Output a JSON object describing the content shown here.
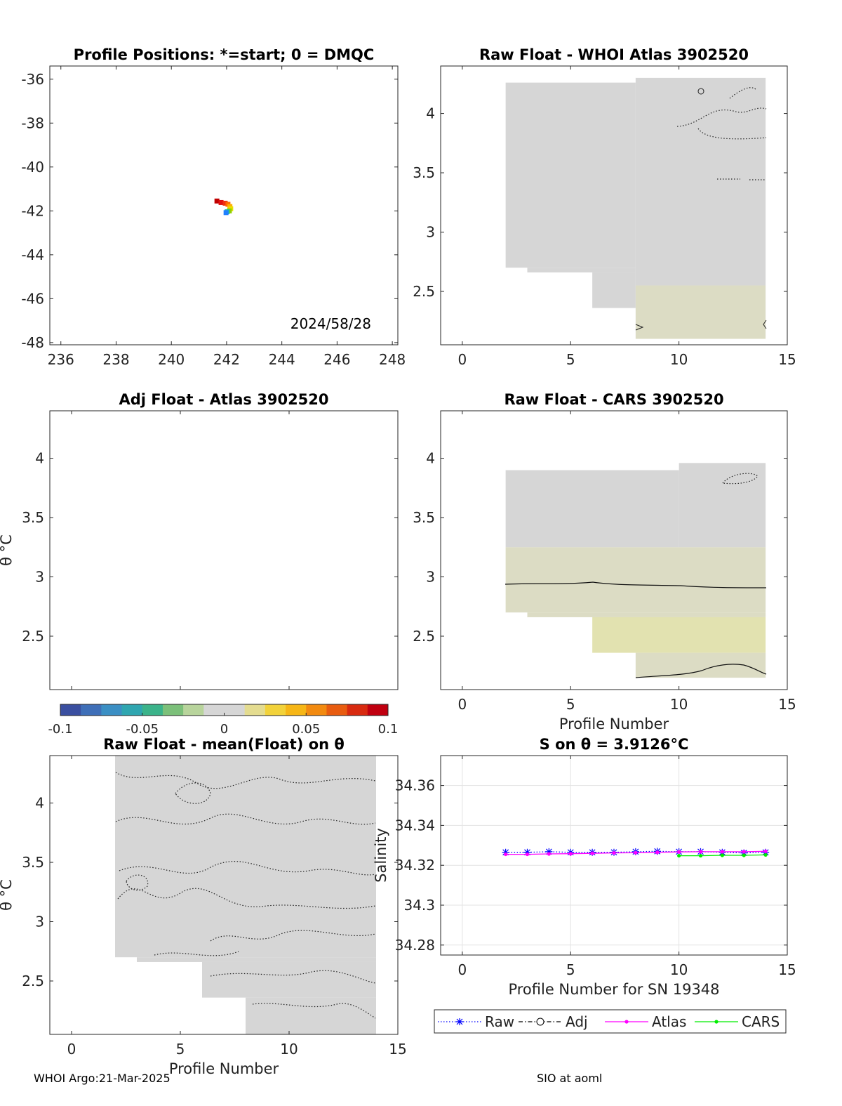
{
  "footer": {
    "left": "WHOI Argo:21-Mar-2025",
    "right": "SIO at aoml"
  },
  "colorbar": {
    "ticks": [
      -0.1,
      -0.05,
      0,
      0.05,
      0.1
    ],
    "tick_labels": [
      "-0.1",
      "-0.05",
      "0",
      "0.05",
      "0.1"
    ],
    "range": [
      -0.1,
      0.1
    ]
  },
  "chart_data": [
    {
      "id": "positions",
      "type": "scatter",
      "title": "Profile Positions: *=start; 0 = DMQC",
      "xlabel": "",
      "ylabel": "",
      "xlim": [
        235.6,
        248.2
      ],
      "ylim": [
        -48.1,
        -35.4
      ],
      "xticks": [
        236,
        238,
        240,
        242,
        244,
        246,
        248
      ],
      "xtick_labels": [
        "236",
        "238",
        "240",
        "242",
        "244",
        "246",
        "248"
      ],
      "yticks": [
        -36,
        -38,
        -40,
        -42,
        -44,
        -46,
        -48
      ],
      "ytick_labels": [
        "-36",
        "-38",
        "-40",
        "-42",
        "-44",
        "-46",
        "-48"
      ],
      "annotation": "2024/58/28",
      "points": [
        {
          "x": 241.65,
          "y": -41.55,
          "color": "#c00000"
        },
        {
          "x": 241.8,
          "y": -41.62,
          "color": "#e01010"
        },
        {
          "x": 241.95,
          "y": -41.65,
          "color": "#f03010"
        },
        {
          "x": 242.05,
          "y": -41.7,
          "color": "#ff6a00"
        },
        {
          "x": 242.12,
          "y": -41.8,
          "color": "#ffb000"
        },
        {
          "x": 242.15,
          "y": -41.9,
          "color": "#e8e000"
        },
        {
          "x": 242.1,
          "y": -42.0,
          "color": "#8fd000"
        },
        {
          "x": 242.02,
          "y": -42.04,
          "color": "#20c0a0"
        },
        {
          "x": 241.98,
          "y": -42.08,
          "color": "#2080ff"
        }
      ]
    },
    {
      "id": "raw-whoi",
      "type": "heatmap",
      "title": "Raw Float - WHOI Atlas  3902520",
      "xlabel": "",
      "ylabel": "",
      "xlim": [
        -1,
        15
      ],
      "ylim": [
        2.05,
        4.4
      ],
      "xticks": [
        0,
        5,
        10,
        15
      ],
      "xtick_labels": [
        "0",
        "5",
        "10",
        "15"
      ],
      "yticks": [
        2.5,
        3,
        3.5,
        4
      ],
      "ytick_labels": [
        "2.5",
        "3",
        "3.5",
        "4"
      ],
      "regions": [
        {
          "x0": 2,
          "x1": 8,
          "y0": 2.7,
          "y1": 4.26,
          "color": "#d6d6d6"
        },
        {
          "x0": 3,
          "x1": 8,
          "y0": 2.66,
          "y1": 2.7,
          "color": "#d6d6d6"
        },
        {
          "x0": 6,
          "x1": 8,
          "y0": 2.36,
          "y1": 2.66,
          "color": "#d6d6d6"
        },
        {
          "x0": 8,
          "x1": 14,
          "y0": 2.55,
          "y1": 4.3,
          "color": "#d6d6d6"
        },
        {
          "x0": 8,
          "x1": 14,
          "y0": 2.1,
          "y1": 2.55,
          "color": "#dcdcc4"
        }
      ]
    },
    {
      "id": "adj-atlas",
      "type": "heatmap",
      "title": "Adj Float - Atlas  3902520",
      "xlabel": "",
      "ylabel": "θ °C",
      "xlim": [
        -1,
        15
      ],
      "ylim": [
        2.05,
        4.4
      ],
      "xticks": [
        0,
        5,
        10,
        15
      ],
      "xtick_labels": [
        "",
        "",
        "",
        ""
      ],
      "yticks": [
        2.5,
        3,
        3.5,
        4
      ],
      "ytick_labels": [
        "2.5",
        "3",
        "3.5",
        "4"
      ],
      "regions": []
    },
    {
      "id": "raw-cars",
      "type": "heatmap",
      "title": "Raw Float - CARS  3902520",
      "xlabel": "Profile Number",
      "ylabel": "",
      "xlim": [
        -1,
        15
      ],
      "ylim": [
        2.05,
        4.4
      ],
      "xticks": [
        0,
        5,
        10,
        15
      ],
      "xtick_labels": [
        "0",
        "5",
        "10",
        "15"
      ],
      "yticks": [
        2.5,
        3,
        3.5,
        4
      ],
      "ytick_labels": [
        "2.5",
        "3",
        "3.5",
        "4"
      ],
      "regions": [
        {
          "x0": 2,
          "x1": 10,
          "y0": 3.25,
          "y1": 3.9,
          "color": "#d6d6d6"
        },
        {
          "x0": 10,
          "x1": 14,
          "y0": 3.25,
          "y1": 3.96,
          "color": "#d6d6d6"
        },
        {
          "x0": 2,
          "x1": 14,
          "y0": 2.7,
          "y1": 3.25,
          "color": "#dcdcc4"
        },
        {
          "x0": 3,
          "x1": 14,
          "y0": 2.66,
          "y1": 2.7,
          "color": "#dcdcc4"
        },
        {
          "x0": 6,
          "x1": 14,
          "y0": 2.36,
          "y1": 2.66,
          "color": "#e2e2b0"
        },
        {
          "x0": 8,
          "x1": 14,
          "y0": 2.15,
          "y1": 2.36,
          "color": "#dcdcc4"
        }
      ]
    },
    {
      "id": "raw-mean",
      "type": "heatmap",
      "title": "Raw Float - mean(Float) on θ",
      "xlabel": "Profile Number",
      "ylabel": "θ °C",
      "xlim": [
        -1,
        15
      ],
      "ylim": [
        2.05,
        4.4
      ],
      "xticks": [
        0,
        5,
        10,
        15
      ],
      "xtick_labels": [
        "0",
        "5",
        "10",
        "15"
      ],
      "yticks": [
        2.5,
        3,
        3.5,
        4
      ],
      "ytick_labels": [
        "2.5",
        "3",
        "3.5",
        "4"
      ],
      "regions": [
        {
          "x0": 2,
          "x1": 14,
          "y0": 2.7,
          "y1": 4.4,
          "color": "#d6d6d6"
        },
        {
          "x0": 3,
          "x1": 14,
          "y0": 2.66,
          "y1": 2.7,
          "color": "#d6d6d6"
        },
        {
          "x0": 6,
          "x1": 14,
          "y0": 2.36,
          "y1": 2.66,
          "color": "#d6d6d6"
        },
        {
          "x0": 8,
          "x1": 14,
          "y0": 2.05,
          "y1": 2.36,
          "color": "#d6d6d6"
        }
      ]
    },
    {
      "id": "salinity",
      "type": "line",
      "title": "S on θ = 3.9126°C",
      "xlabel": "Profile Number for SN 19348",
      "ylabel": "Salinity",
      "xlim": [
        -1,
        15
      ],
      "ylim": [
        34.275,
        34.375
      ],
      "xticks": [
        0,
        5,
        10,
        15
      ],
      "xtick_labels": [
        "0",
        "5",
        "10",
        "15"
      ],
      "yticks": [
        34.28,
        34.3,
        34.32,
        34.34,
        34.36
      ],
      "ytick_labels": [
        "34.28",
        "34.3",
        "34.32",
        "34.34",
        "34.36"
      ],
      "grid": true,
      "legend": "bottom",
      "series": [
        {
          "name": "Raw",
          "color": "#0000ff",
          "marker": "star",
          "dash": "1.5 2.5",
          "x": [
            2,
            3,
            4,
            5,
            6,
            7,
            8,
            9,
            10,
            11,
            12,
            13,
            14
          ],
          "y": [
            34.3265,
            34.3265,
            34.3268,
            34.3265,
            34.3265,
            34.3265,
            34.3268,
            34.327,
            34.3268,
            34.3268,
            34.3265,
            34.3262,
            34.3265
          ]
        },
        {
          "name": "Adj",
          "color": "#000000",
          "marker": "circle",
          "dash": "6 3 1.5 3",
          "x": [],
          "y": []
        },
        {
          "name": "Atlas",
          "color": "#ff00ff",
          "marker": "dot",
          "dash": "",
          "x": [
            2,
            3,
            4,
            5,
            6,
            7,
            8,
            9,
            10,
            11,
            12,
            13,
            14
          ],
          "y": [
            34.3255,
            34.3255,
            34.3257,
            34.3258,
            34.326,
            34.3262,
            34.3263,
            34.3265,
            34.3267,
            34.3268,
            34.3268,
            34.3268,
            34.327
          ]
        },
        {
          "name": "CARS",
          "color": "#00ee00",
          "marker": "dot",
          "dash": "",
          "x": [
            10,
            11,
            12,
            13,
            14
          ],
          "y": [
            34.3248,
            34.3248,
            34.325,
            34.325,
            34.3252
          ]
        }
      ]
    }
  ]
}
